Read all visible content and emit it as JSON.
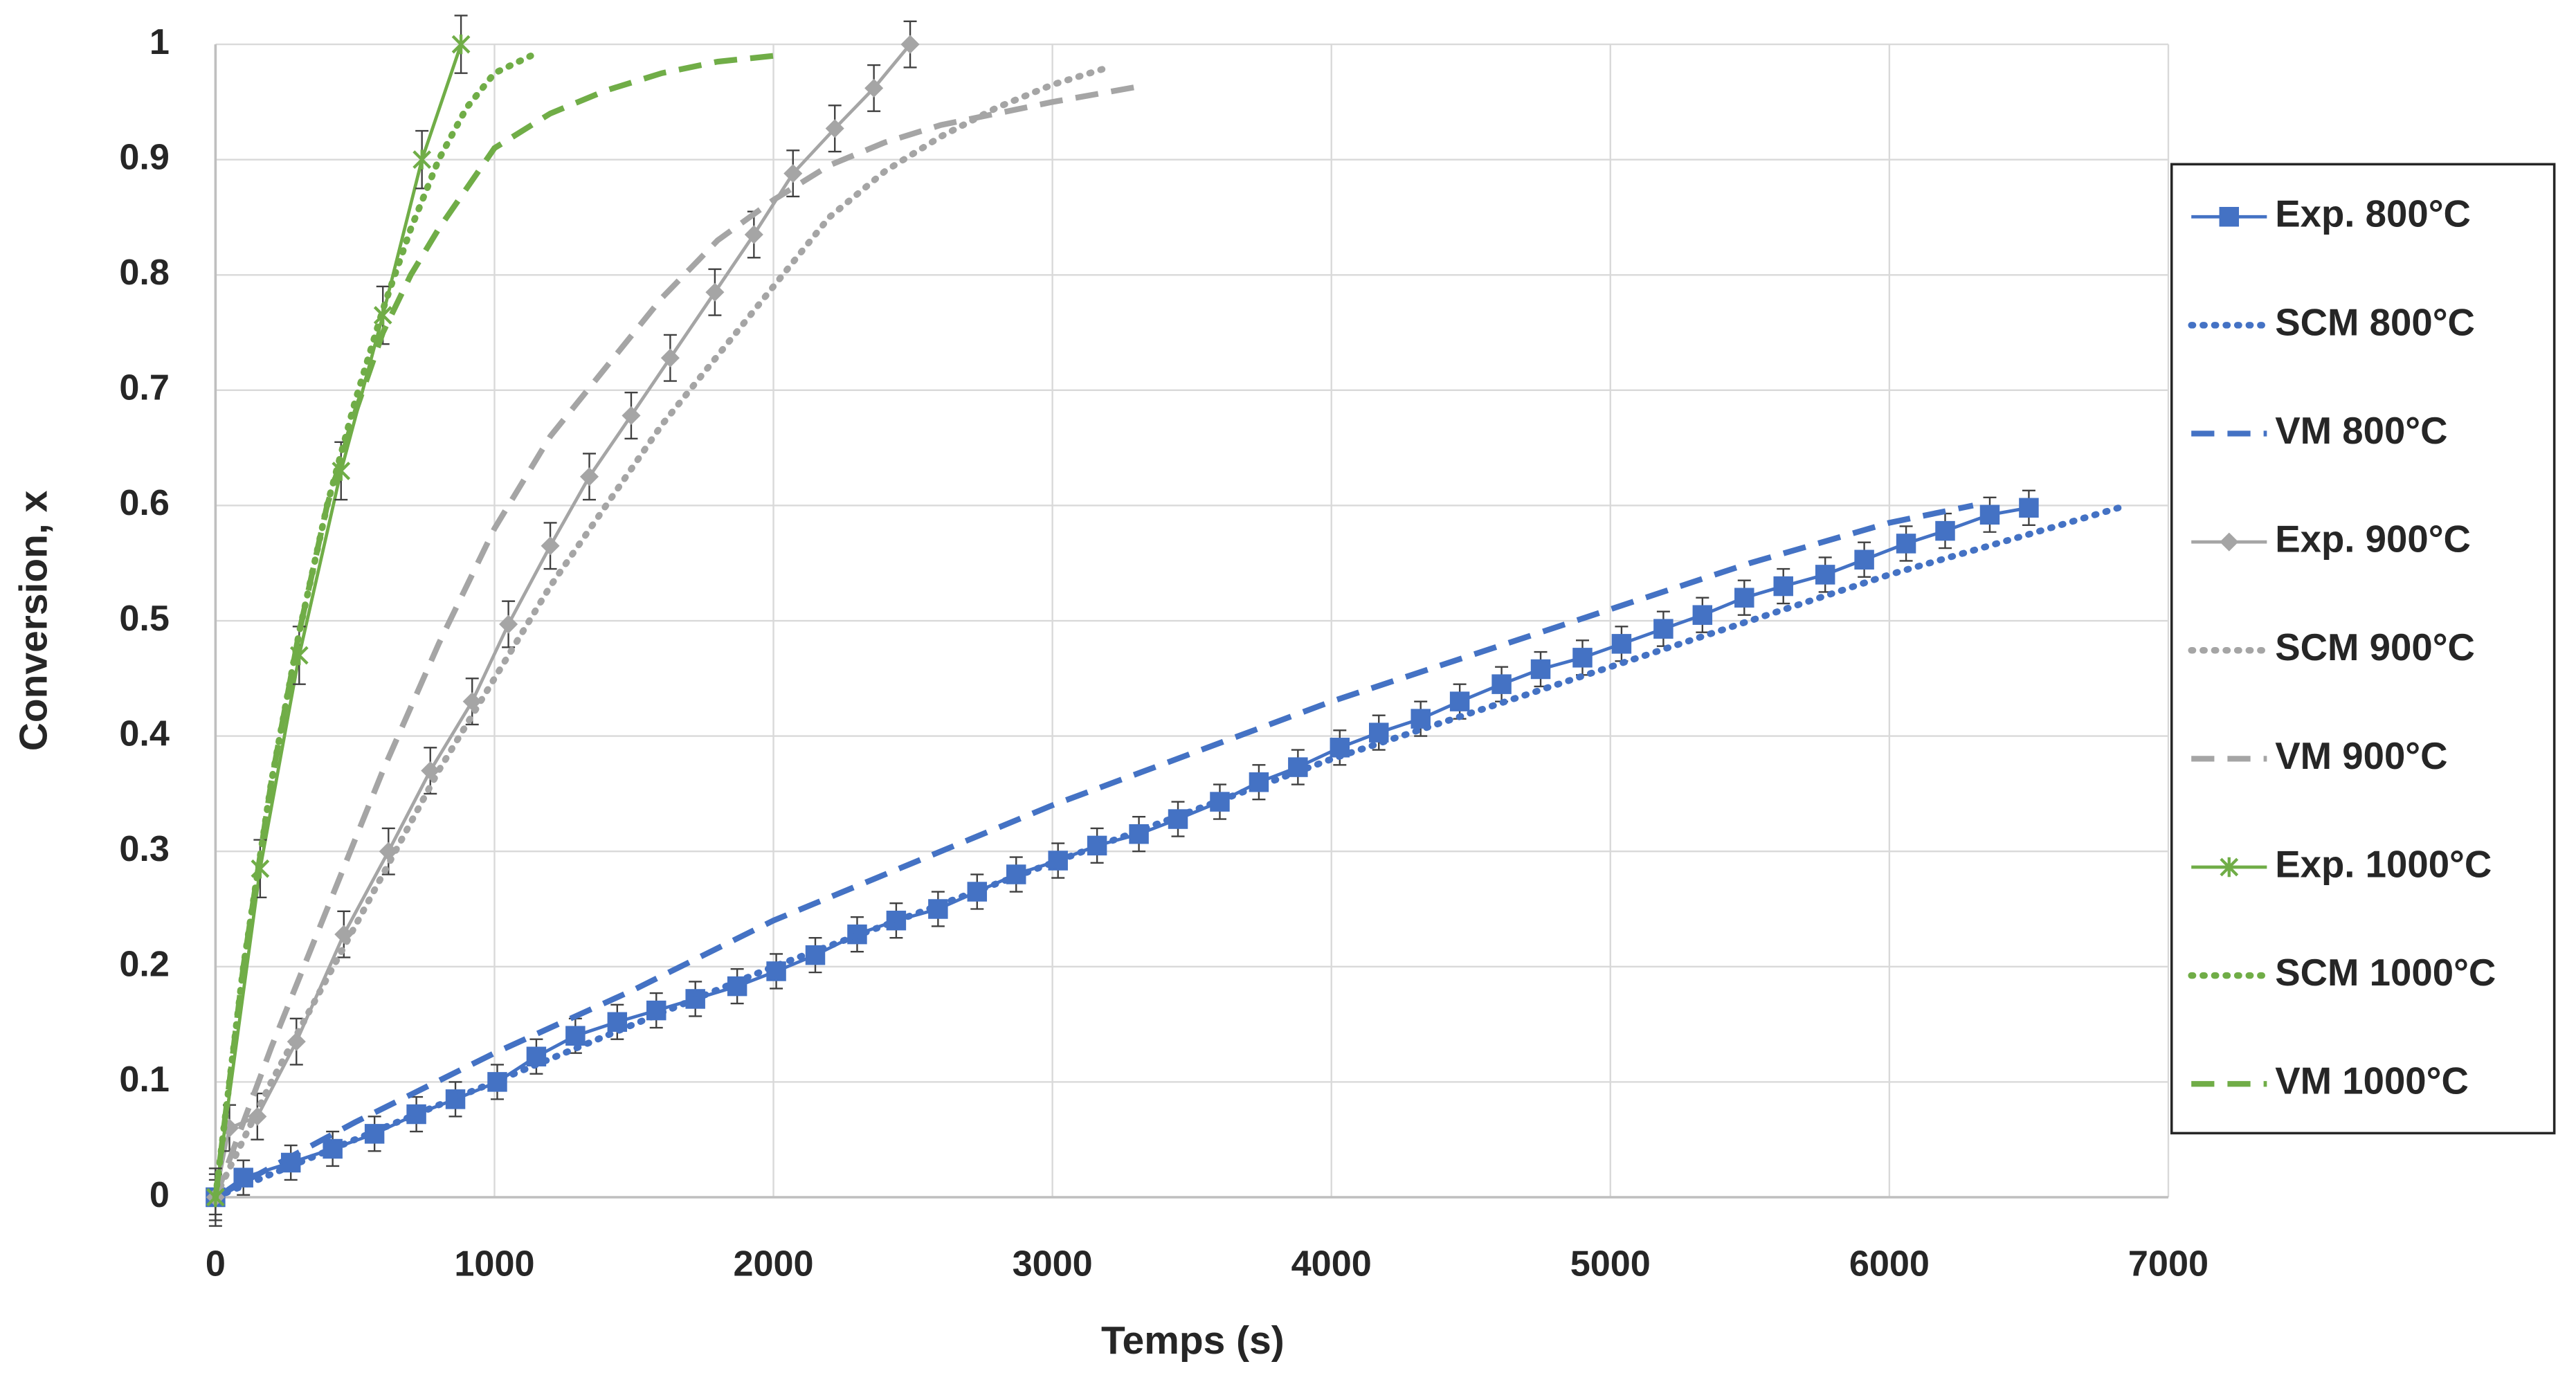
{
  "chart_data": {
    "type": "line",
    "xlabel": "Temps (s)",
    "ylabel": "Conversion, x",
    "xlim": [
      0,
      7000
    ],
    "xticks": [
      0,
      1000,
      2000,
      3000,
      4000,
      5000,
      6000,
      7000
    ],
    "ylim": [
      0,
      1
    ],
    "yticks": [
      0,
      0.1,
      0.2,
      0.3,
      0.4,
      0.5,
      0.6,
      0.7,
      0.8,
      0.9,
      1
    ],
    "grid": true,
    "legend": "right",
    "series": [
      {
        "name": "Exp. 800°C",
        "color": "#4472c4",
        "dash": "solid",
        "marker": "square",
        "error": 0.015,
        "x": [
          0,
          100,
          270,
          420,
          570,
          720,
          860,
          1010,
          1150,
          1290,
          1440,
          1580,
          1720,
          1870,
          2010,
          2150,
          2300,
          2440,
          2590,
          2730,
          2870,
          3020,
          3160,
          3310,
          3450,
          3600,
          3740,
          3880,
          4030,
          4170,
          4320,
          4460,
          4610,
          4750,
          4900,
          5040,
          5190,
          5330,
          5480,
          5620,
          5770,
          5910,
          6060,
          6200,
          6360,
          6500
        ],
        "values": [
          0,
          0.017,
          0.03,
          0.042,
          0.055,
          0.072,
          0.085,
          0.1,
          0.122,
          0.14,
          0.152,
          0.162,
          0.172,
          0.183,
          0.196,
          0.21,
          0.228,
          0.24,
          0.25,
          0.265,
          0.28,
          0.292,
          0.305,
          0.315,
          0.328,
          0.343,
          0.36,
          0.373,
          0.39,
          0.403,
          0.415,
          0.43,
          0.445,
          0.458,
          0.468,
          0.48,
          0.493,
          0.505,
          0.52,
          0.53,
          0.54,
          0.553,
          0.567,
          0.578,
          0.592,
          0.598
        ]
      },
      {
        "name": "SCM 800°C",
        "color": "#4472c4",
        "dash": "dotted",
        "x": [
          0,
          500,
          1000,
          1500,
          2000,
          2500,
          3000,
          3500,
          4000,
          4500,
          5000,
          5500,
          6000,
          6500,
          6850
        ],
        "values": [
          0,
          0.05,
          0.1,
          0.15,
          0.2,
          0.245,
          0.29,
          0.335,
          0.38,
          0.42,
          0.46,
          0.5,
          0.54,
          0.575,
          0.6
        ]
      },
      {
        "name": "VM 800°C",
        "color": "#4472c4",
        "dash": "dashed",
        "x": [
          0,
          500,
          1000,
          1500,
          2000,
          2500,
          3000,
          3500,
          4000,
          4500,
          5000,
          5500,
          6000,
          6300
        ],
        "values": [
          0,
          0.065,
          0.125,
          0.18,
          0.24,
          0.29,
          0.34,
          0.385,
          0.43,
          0.47,
          0.51,
          0.55,
          0.585,
          0.6
        ]
      },
      {
        "name": "Exp. 900°C",
        "color": "#a5a5a5",
        "dash": "solid",
        "marker": "diamond",
        "error": 0.02,
        "x": [
          0,
          50,
          150,
          290,
          460,
          620,
          770,
          920,
          1050,
          1200,
          1340,
          1490,
          1630,
          1790,
          1930,
          2070,
          2220,
          2360,
          2490
        ],
        "values": [
          0,
          0.06,
          0.07,
          0.135,
          0.228,
          0.3,
          0.37,
          0.43,
          0.497,
          0.565,
          0.625,
          0.678,
          0.728,
          0.785,
          0.835,
          0.888,
          0.927,
          0.962,
          1
        ]
      },
      {
        "name": "SCM 900°C",
        "color": "#a5a5a5",
        "dash": "dotted",
        "x": [
          0,
          200,
          400,
          600,
          800,
          1000,
          1200,
          1400,
          1600,
          1800,
          2000,
          2200,
          2400,
          2600,
          2800,
          3000,
          3200
        ],
        "values": [
          0,
          0.1,
          0.19,
          0.28,
          0.37,
          0.45,
          0.53,
          0.6,
          0.67,
          0.73,
          0.79,
          0.85,
          0.89,
          0.92,
          0.945,
          0.965,
          0.98
        ]
      },
      {
        "name": "VM 900°C",
        "color": "#a5a5a5",
        "dash": "dashed",
        "x": [
          0,
          200,
          400,
          600,
          800,
          1000,
          1200,
          1400,
          1600,
          1800,
          2000,
          2200,
          2400,
          2600,
          2800,
          3000,
          3300
        ],
        "values": [
          0,
          0.13,
          0.25,
          0.37,
          0.48,
          0.58,
          0.66,
          0.72,
          0.78,
          0.83,
          0.865,
          0.895,
          0.915,
          0.93,
          0.94,
          0.95,
          0.963
        ]
      },
      {
        "name": "Exp. 1000°C",
        "color": "#70ad47",
        "dash": "solid",
        "marker": "x",
        "error": 0.025,
        "x": [
          0,
          160,
          300,
          450,
          600,
          740,
          880
        ],
        "values": [
          0,
          0.285,
          0.47,
          0.63,
          0.765,
          0.9,
          1
        ]
      },
      {
        "name": "SCM 1000°C",
        "color": "#70ad47",
        "dash": "dotted",
        "x": [
          0,
          100,
          200,
          300,
          400,
          500,
          600,
          700,
          800,
          900,
          1000,
          1130
        ],
        "values": [
          0,
          0.2,
          0.36,
          0.49,
          0.6,
          0.69,
          0.77,
          0.84,
          0.9,
          0.945,
          0.975,
          0.99
        ]
      },
      {
        "name": "VM 1000°C",
        "color": "#70ad47",
        "dash": "dashed",
        "x": [
          0,
          100,
          200,
          300,
          400,
          500,
          600,
          700,
          800,
          900,
          1000,
          1200,
          1400,
          1600,
          1800,
          2000
        ],
        "values": [
          0,
          0.2,
          0.36,
          0.49,
          0.6,
          0.68,
          0.75,
          0.8,
          0.84,
          0.875,
          0.91,
          0.94,
          0.96,
          0.975,
          0.985,
          0.99
        ]
      }
    ]
  }
}
